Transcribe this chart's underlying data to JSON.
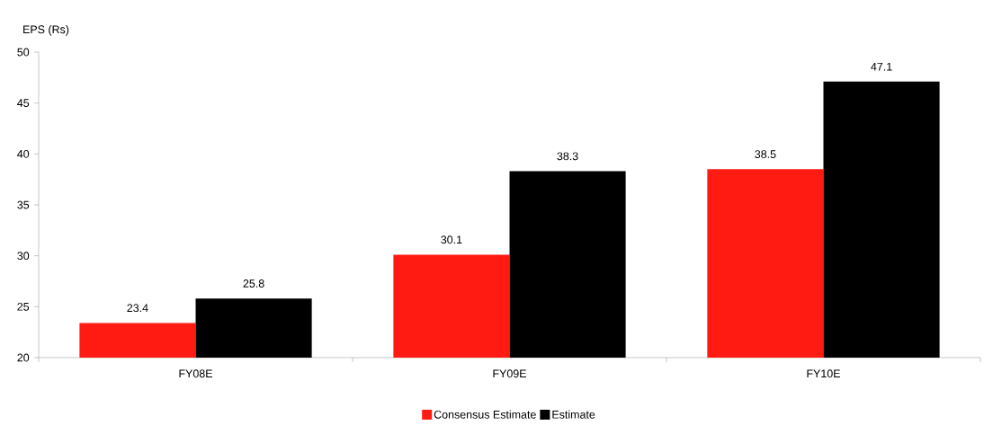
{
  "chart_data": {
    "type": "bar",
    "ylabel": "EPS (Rs)",
    "categories": [
      "FY08E",
      "FY09E",
      "FY10E"
    ],
    "series": [
      {
        "name": "Consensus Estimate",
        "color": "#ff1a12",
        "values": [
          23.4,
          30.1,
          38.5
        ]
      },
      {
        "name": "Estimate",
        "color": "#000000",
        "values": [
          25.8,
          38.3,
          47.1
        ]
      }
    ],
    "ylim": [
      20,
      50
    ],
    "yticks": [
      20,
      25,
      30,
      35,
      40,
      45,
      50
    ],
    "data_labels": true,
    "legend": "bottom",
    "grid": false
  }
}
